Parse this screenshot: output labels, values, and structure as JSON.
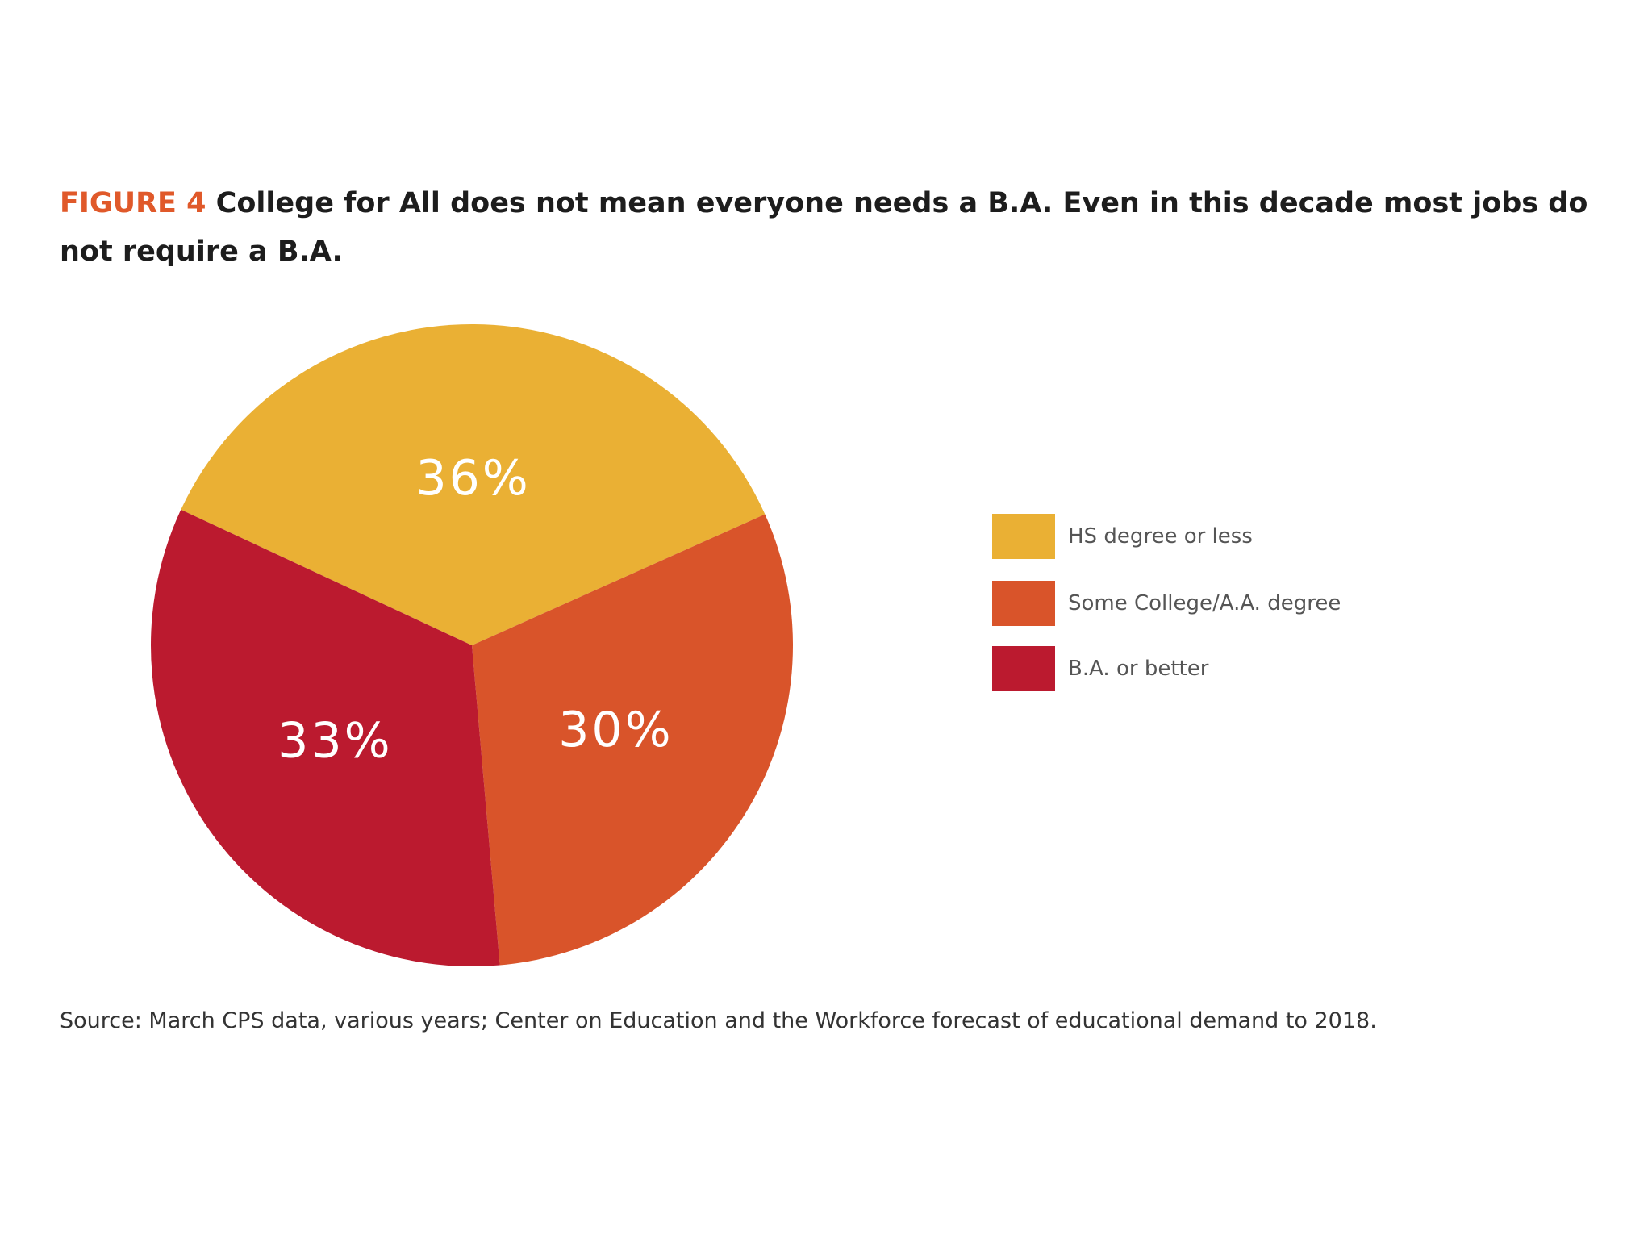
{
  "figure": {
    "label": "FIGURE 4",
    "title": "College for All does not mean everyone needs a B.A. Even in this decade most jobs do not require a B.A.",
    "source": "Source: March CPS data, various years; Center on Education and the Workforce forecast of educational demand to 2018."
  },
  "chart_data": {
    "type": "pie",
    "title": "College for All does not mean everyone needs a B.A. Even in this decade most jobs do not require a B.A.",
    "slices": [
      {
        "label": "HS degree or less",
        "value": 36,
        "display": "36%",
        "color": "#eab034"
      },
      {
        "label": "Some College/A.A. degree",
        "value": 30,
        "display": "30%",
        "color": "#d9542a"
      },
      {
        "label": "B.A. or better",
        "value": 33,
        "display": "33%",
        "color": "#bb1a2f"
      }
    ],
    "legend": "right"
  }
}
